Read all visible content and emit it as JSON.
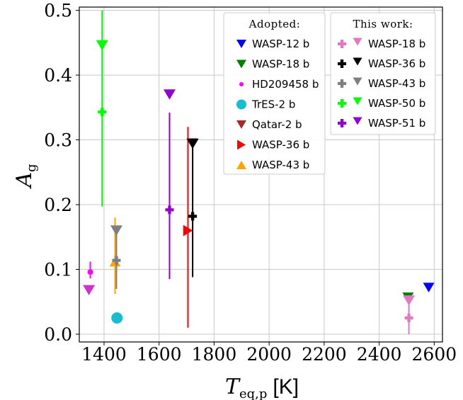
{
  "chart_data": {
    "type": "scatter",
    "xlabel": "T_eq,p [K]",
    "xlabel_parts": {
      "symbol": "T",
      "subscript": "eq,p",
      "unit": "[K]"
    },
    "ylabel": "A_g",
    "ylabel_parts": {
      "symbol": "A",
      "subscript": "g"
    },
    "xlim": [
      1310,
      2630
    ],
    "ylim": [
      -0.012,
      0.505
    ],
    "xticks": [
      1400,
      1600,
      1800,
      2000,
      2200,
      2400,
      2600
    ],
    "yticks": [
      0.0,
      0.1,
      0.2,
      0.3,
      0.4,
      0.5
    ],
    "xtick_labels": [
      "1400",
      "1600",
      "1800",
      "2000",
      "2200",
      "2400",
      "2600"
    ],
    "ytick_labels": [
      "0.0",
      "0.1",
      "0.2",
      "0.3",
      "0.4",
      "0.5"
    ],
    "grid": true,
    "legends": [
      {
        "title": "Adopted:",
        "placement": "top-center",
        "entries": [
          {
            "name": "WASP-12 b",
            "marker": "triangle-down",
            "color": "#0000ff"
          },
          {
            "name": "WASP-18 b",
            "marker": "triangle-down",
            "color": "#008000"
          },
          {
            "name": "HD209458 b",
            "marker": "point",
            "color": "#ff00ff"
          },
          {
            "name": "TrES-2 b",
            "marker": "circle",
            "color": "#17becf"
          },
          {
            "name": "Qatar-2 b",
            "marker": "triangle-down",
            "color": "#a52a2a"
          },
          {
            "name": "WASP-36 b",
            "marker": "triangle-right",
            "color": "#ff0000"
          },
          {
            "name": "WASP-43 b",
            "marker": "triangle-up",
            "color": "#ffa500"
          }
        ]
      },
      {
        "title": "This work:",
        "placement": "top-right",
        "entries": [
          {
            "name": "WASP-18 b",
            "color": "#e377c2"
          },
          {
            "name": "WASP-36 b",
            "color": "#000000"
          },
          {
            "name": "WASP-43 b",
            "color": "#7f7f7f"
          },
          {
            "name": "WASP-50 b",
            "color": "#00ff00"
          },
          {
            "name": "WASP-51 b",
            "color": "#9400d3"
          }
        ]
      }
    ],
    "adopted_points": [
      {
        "name": "WASP-12 b",
        "marker": "triangle-down",
        "color": "#0000ff",
        "x": 2580,
        "y": 0.072
      },
      {
        "name": "WASP-18 b",
        "marker": "triangle-down",
        "color": "#008000",
        "x": 2505,
        "y": 0.057
      },
      {
        "name": "HD209458 b",
        "marker": "point",
        "color": "#ff00ff",
        "x": 1350,
        "y": 0.096,
        "yerr_low": 0.086,
        "yerr_high": 0.112
      },
      {
        "name": "TrES-2 b",
        "marker": "circle",
        "color": "#17becf",
        "x": 1447,
        "y": 0.025
      },
      {
        "name": "Qatar-2 b",
        "marker": "triangle-down",
        "color": "#a52a2a",
        "x": 1720,
        "y": 0.295
      },
      {
        "name": "WASP-36 b",
        "marker": "triangle-right",
        "color": "#ff0000",
        "x": 1705,
        "y": 0.16,
        "yerr_low": 0.01,
        "yerr_high": 0.32
      },
      {
        "name": "WASP-43 b",
        "marker": "triangle-up",
        "color": "#ffa500",
        "x": 1440,
        "y": 0.112,
        "yerr_low": 0.062,
        "yerr_high": 0.18
      }
    ],
    "this_work": [
      {
        "name": "WASP-18 b",
        "color": "#e377c2",
        "x": 2508,
        "y": 0.025,
        "yerr_low": 0.0,
        "yerr_high": 0.048,
        "upper_limit": 0.052
      },
      {
        "name": "WASP-36 b",
        "color": "#000000",
        "x": 1722,
        "y": 0.182,
        "yerr_low": 0.088,
        "yerr_high": 0.29,
        "upper_limit": 0.294
      },
      {
        "name": "WASP-43 b",
        "color": "#7f7f7f",
        "x": 1445,
        "y": 0.114,
        "yerr_low": 0.07,
        "yerr_high": 0.165,
        "upper_limit": 0.16
      },
      {
        "name": "WASP-50 b",
        "color": "#00ff00",
        "x": 1393,
        "y": 0.343,
        "yerr_low": 0.197,
        "yerr_high": 0.5,
        "upper_limit": 0.446
      },
      {
        "name": "WASP-51 b",
        "color": "#9400d3",
        "x": 1638,
        "y": 0.192,
        "yerr_low": 0.085,
        "yerr_high": 0.342,
        "upper_limit": 0.37
      }
    ],
    "extra_markers": [
      {
        "marker": "triangle-down",
        "color": "#cc33cc",
        "x": 1345,
        "y": 0.068
      }
    ]
  }
}
